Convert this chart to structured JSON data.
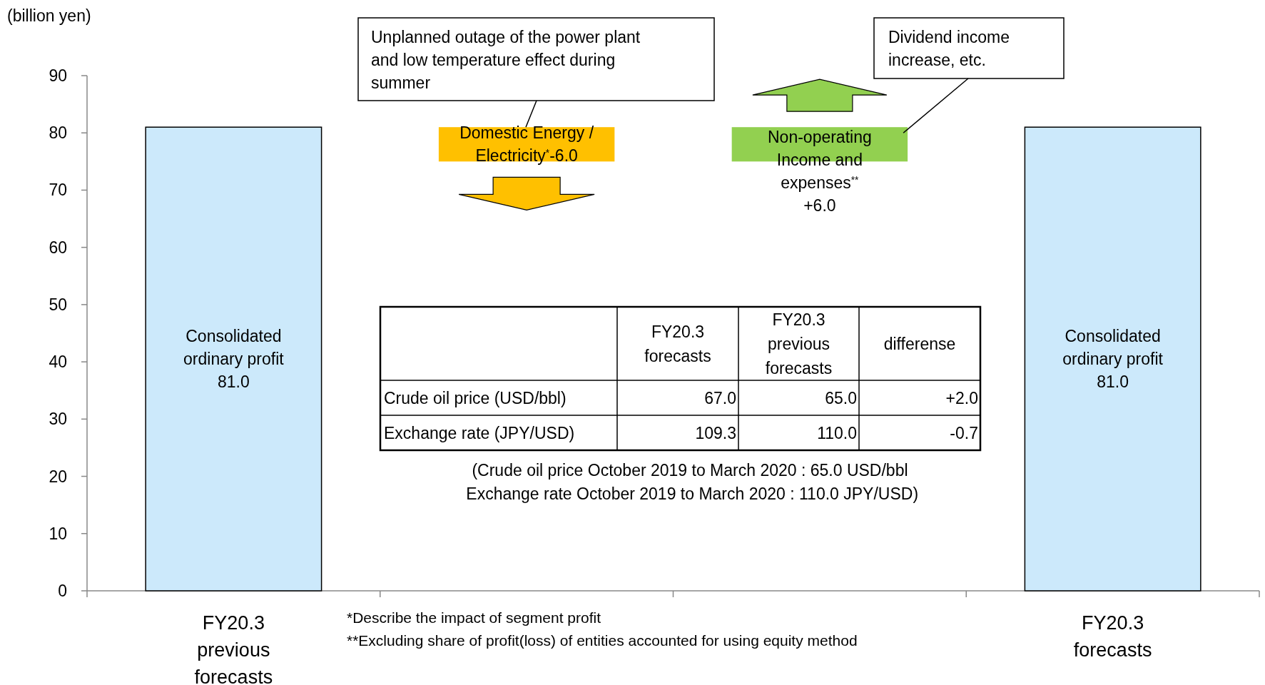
{
  "chart_data": {
    "type": "bar",
    "ylabel": "(billion yen)",
    "categories": [
      "FY20.3\nprevious\nforecasts",
      null,
      null,
      "FY20.3\nforecasts"
    ],
    "values": [
      81,
      -6,
      6,
      81
    ],
    "base": [
      0,
      81,
      75,
      0
    ],
    "colors": [
      "#cce9fb",
      "#ffc000",
      "#92d050",
      "#cce9fb"
    ],
    "value_labels": [
      "Consolidated\nordinary profit\n81.0",
      "Domestic Energy /\nElectricity$^{*}$-6.0",
      "Non-operating\nIncome and\nexpenses$^{**}$\n+6.0",
      "Consolidated\nordinary profit\n81.0"
    ],
    "ylim": [
      0,
      90
    ],
    "yticks": [
      0,
      10,
      20,
      30,
      40,
      50,
      60,
      70,
      80,
      90
    ],
    "annotations": [
      "Unplanned outage of the power plant\nand low temperature effect during\nsummer",
      "Dividend income\nincrease, etc.",
      "FY20.3\nforecasts",
      "FY20.3\nprevious\nforecasts",
      "differense",
      "Crude oil price (USD/bbl)",
      "67.0",
      "65.0",
      "+2.0",
      "Exchange rate (JPY/USD)",
      "109.3",
      "110.0",
      "-0.7",
      "(Crude oil price October 2019 to March 2020 : 65.0 USD/bbl\n Exchange rate October 2019 to March 2020 : 110.0 JPY/USD)",
      "*Describe the impact of segment profit",
      "**Excluding share of profit(loss) of entities accounted for using equity method"
    ]
  }
}
